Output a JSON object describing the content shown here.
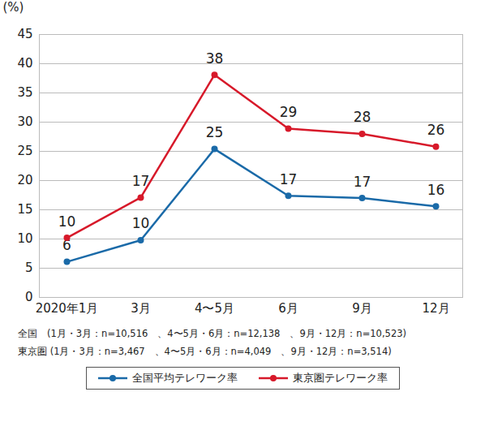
{
  "chart_data": {
    "type": "line",
    "categories": [
      "2020年1月",
      "3月",
      "4〜5月",
      "6月",
      "9月",
      "12月"
    ],
    "series": [
      {
        "name": "全国平均テレワーク率",
        "color": "#1a6aa8",
        "marker": "circle",
        "values": [
          6.1,
          9.8,
          25.4,
          17.4,
          17.0,
          15.6
        ],
        "value_labels": [
          "6",
          "10",
          "25",
          "17",
          "17",
          "16"
        ]
      },
      {
        "name": "東京圏テレワーク率",
        "color": "#d7192a",
        "marker": "circle",
        "values": [
          10.2,
          17.1,
          38.1,
          28.9,
          28.0,
          25.8
        ],
        "value_labels": [
          "10",
          "17",
          "38",
          "29",
          "28",
          "26"
        ]
      }
    ],
    "y_label": "(%)",
    "ylim": [
      0,
      45
    ],
    "yticks": [
      0,
      5,
      10,
      15,
      20,
      25,
      30,
      35,
      40,
      45
    ],
    "grid": true,
    "data_labels": true,
    "legend": "bottom",
    "notes": [
      "全国　(1月・3月：n=10,516　、4〜5月・6月：n=12,138　、9月・12月：n=10,523)",
      "東京圏 (1月・3月：n=3,467　、4〜5月・6月：n=4,049　、9月・12月：n=3,514)"
    ]
  }
}
